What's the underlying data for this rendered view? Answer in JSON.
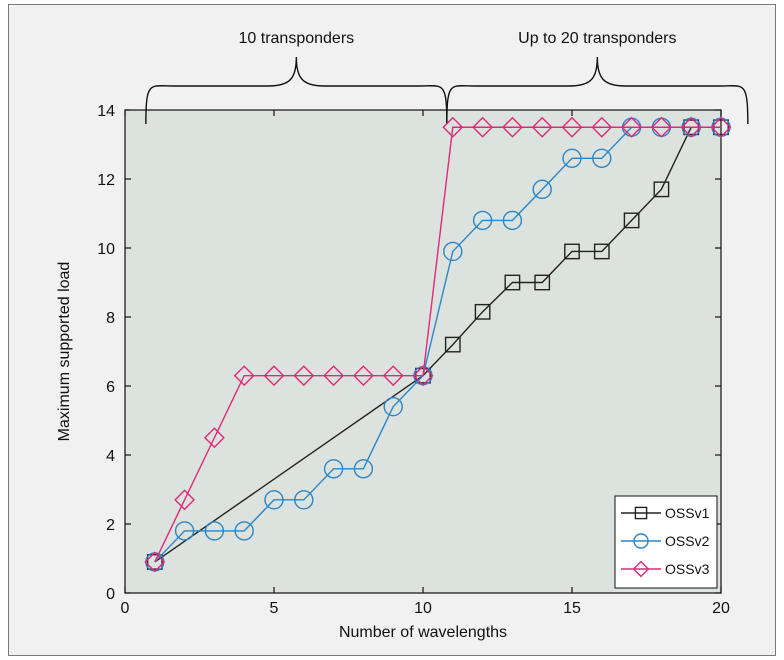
{
  "chart_data": {
    "type": "line",
    "xlabel": "Number of wavelengths",
    "ylabel": "Maximum supported load",
    "xlim": [
      0,
      20
    ],
    "ylim": [
      0,
      14
    ],
    "xticks": [
      0,
      5,
      10,
      15,
      20
    ],
    "yticks": [
      0,
      2,
      4,
      6,
      8,
      10,
      12,
      14
    ],
    "plot_background": "#dce2dd",
    "legend_position": "bottom-right",
    "annotations": [
      {
        "text": "10 transponders",
        "x_start": 0.7,
        "x_end": 10.8
      },
      {
        "text": "Up to 20 transponders",
        "x_start": 10.8,
        "x_end": 20.9
      }
    ],
    "series": [
      {
        "name": "OSSv1",
        "color": "#222222",
        "marker": "square",
        "x": [
          1,
          10,
          11,
          12,
          13,
          14,
          15,
          16,
          17,
          18,
          19,
          20
        ],
        "y": [
          0.9,
          6.3,
          7.2,
          8.15,
          9.0,
          9.0,
          9.9,
          9.9,
          10.8,
          11.7,
          13.5,
          13.5
        ]
      },
      {
        "name": "OSSv2",
        "color": "#2a86c8",
        "marker": "circle",
        "x": [
          1,
          2,
          3,
          4,
          5,
          6,
          7,
          8,
          9,
          10,
          11,
          12,
          13,
          14,
          15,
          16,
          17,
          18,
          19,
          20
        ],
        "y": [
          0.9,
          1.8,
          1.8,
          1.8,
          2.7,
          2.7,
          3.6,
          3.6,
          5.4,
          6.3,
          9.9,
          10.8,
          10.8,
          11.7,
          12.6,
          12.6,
          13.5,
          13.5,
          13.5,
          13.5
        ]
      },
      {
        "name": "OSSv3",
        "color": "#e0297a",
        "marker": "diamond",
        "x": [
          1,
          2,
          3,
          4,
          5,
          6,
          7,
          8,
          9,
          10,
          11,
          12,
          13,
          14,
          15,
          16,
          17,
          18,
          19,
          20
        ],
        "y": [
          0.9,
          2.7,
          4.5,
          6.3,
          6.3,
          6.3,
          6.3,
          6.3,
          6.3,
          6.3,
          13.5,
          13.5,
          13.5,
          13.5,
          13.5,
          13.5,
          13.5,
          13.5,
          13.5,
          13.5
        ]
      }
    ]
  }
}
